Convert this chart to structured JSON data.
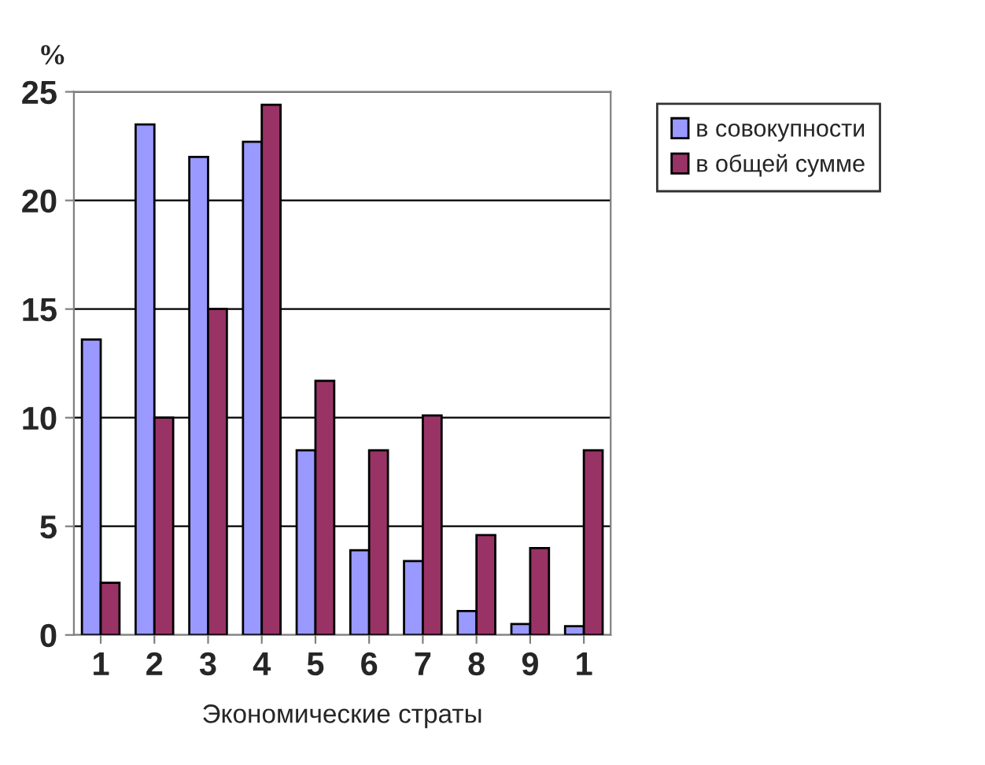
{
  "chart_data": {
    "type": "bar",
    "ylabel": "%",
    "xlabel": "Экономические страты",
    "categories": [
      "1",
      "2",
      "3",
      "4",
      "5",
      "6",
      "7",
      "8",
      "9",
      "1"
    ],
    "series": [
      {
        "name": "в совокупности",
        "color": "#9999ff",
        "values": [
          13.6,
          23.5,
          22,
          22.7,
          8.5,
          3.9,
          3.4,
          1.1,
          0.5,
          0.4
        ]
      },
      {
        "name": "в общей сумме",
        "color": "#993366",
        "values": [
          2.4,
          10,
          15,
          24.4,
          11.7,
          8.5,
          10.1,
          4.6,
          4.0,
          8.5
        ]
      }
    ],
    "ylim": [
      0,
      25
    ],
    "yticks": [
      0,
      5,
      10,
      15,
      20,
      25
    ],
    "grid": "y",
    "legend": "top right"
  }
}
